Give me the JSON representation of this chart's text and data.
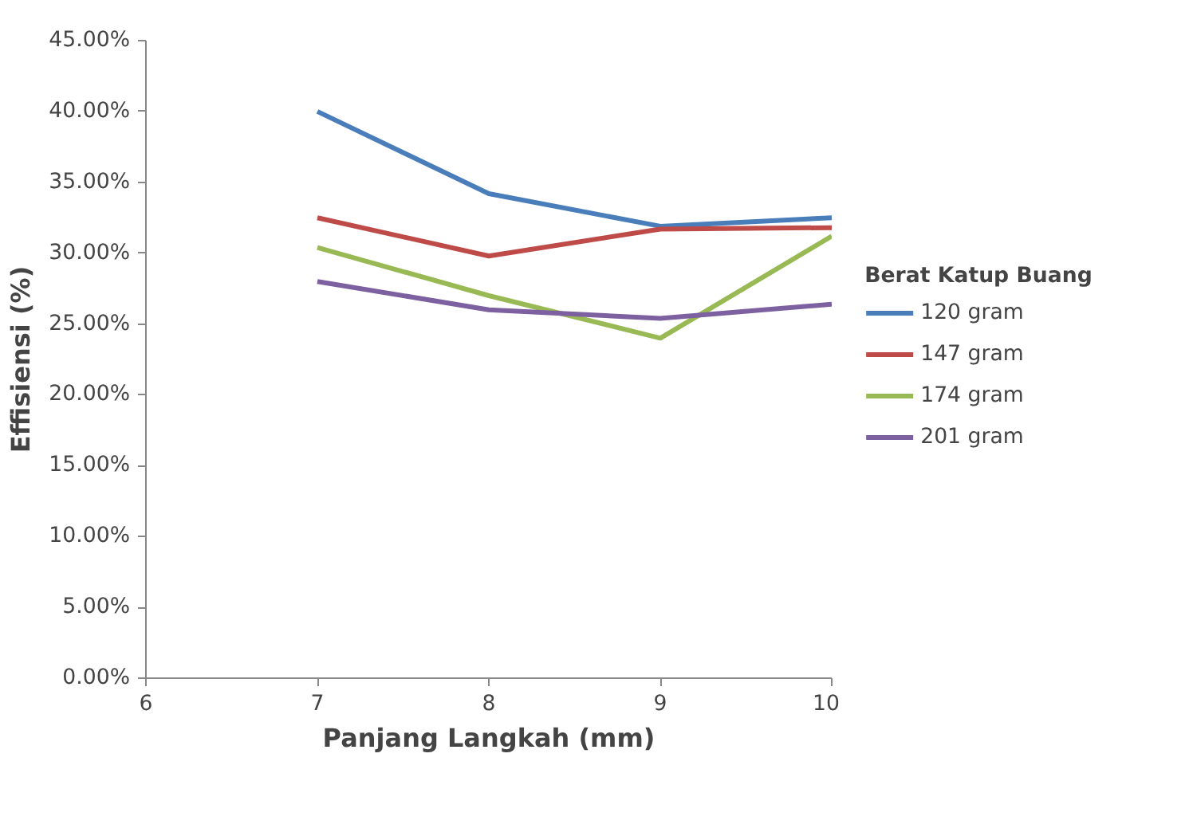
{
  "chart_data": {
    "type": "line",
    "xlabel": "Panjang Langkah (mm)",
    "ylabel": "Effisiensi (%)",
    "legend_title": "Berat Katup Buang",
    "legend": "right",
    "grid": false,
    "line_style": "solid",
    "marker": "none",
    "x": [
      7,
      8,
      9,
      10
    ],
    "xlim": [
      6,
      10
    ],
    "xticks": [
      6,
      7,
      8,
      9,
      10
    ],
    "ylim": [
      0,
      45
    ],
    "yticks": [
      {
        "value": 0,
        "label": "0.00%"
      },
      {
        "value": 5,
        "label": "5.00%"
      },
      {
        "value": 10,
        "label": "10.00%"
      },
      {
        "value": 15,
        "label": "15.00%"
      },
      {
        "value": 20,
        "label": "20.00%"
      },
      {
        "value": 25,
        "label": "25.00%"
      },
      {
        "value": 30,
        "label": "30.00%"
      },
      {
        "value": 35,
        "label": "35.00%"
      },
      {
        "value": 40,
        "label": "40.00%"
      },
      {
        "value": 45,
        "label": "45.00%"
      }
    ],
    "series": [
      {
        "name": "120 gram",
        "color": "#4a7ebb",
        "values": [
          40.0,
          34.2,
          31.9,
          32.5
        ]
      },
      {
        "name": "147 gram",
        "color": "#be4b48",
        "values": [
          32.5,
          29.8,
          31.7,
          31.8
        ]
      },
      {
        "name": "174 gram",
        "color": "#98b954",
        "values": [
          30.4,
          27.0,
          24.0,
          31.2
        ]
      },
      {
        "name": "201 gram",
        "color": "#7d60a0",
        "values": [
          28.0,
          26.0,
          25.4,
          26.4
        ]
      }
    ]
  }
}
